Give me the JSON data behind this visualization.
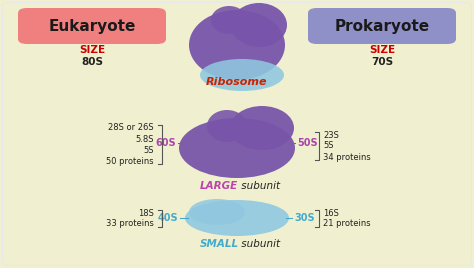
{
  "bg_color": "#f0f0d0",
  "title_eukaryote": "Eukaryote",
  "title_prokaryote": "Prokaryote",
  "eukaryote_box_color": "#f08080",
  "prokaryote_box_color": "#9090c8",
  "size_label": "SIZE",
  "size_color": "#cc0000",
  "eukaryote_size": "80S",
  "prokaryote_size": "70S",
  "ribosome_label": "Ribosome",
  "ribosome_color": "#cc2200",
  "large_label_bold": "LARGE",
  "large_label_rest": " subunit",
  "large_color": "#bb44aa",
  "small_label_bold": "SMALL",
  "small_label_rest": " subunit",
  "small_color": "#44aacc",
  "large_left_size": "60S",
  "large_right_size": "50S",
  "small_left_size": "40S",
  "small_right_size": "30S",
  "subunit_size_color_large": "#aa44aa",
  "subunit_size_color_small": "#44aacc",
  "euk_large_items": [
    "28S or 26S",
    "5.8S",
    "5S",
    "50 proteins"
  ],
  "euk_small_items": [
    "18S",
    "33 proteins"
  ],
  "prok_large_items": [
    "23S",
    "5S",
    "34 proteins"
  ],
  "prok_small_items": [
    "16S",
    "21 proteins"
  ],
  "ribosome_large_color": "#7855aa",
  "ribosome_small_color": "#90c8e0",
  "large_subunit_color": "#7855a8",
  "small_subunit_color": "#90c8e0",
  "bracket_color": "#555555",
  "text_color": "#222222",
  "fig_w": 4.74,
  "fig_h": 2.68,
  "dpi": 100
}
